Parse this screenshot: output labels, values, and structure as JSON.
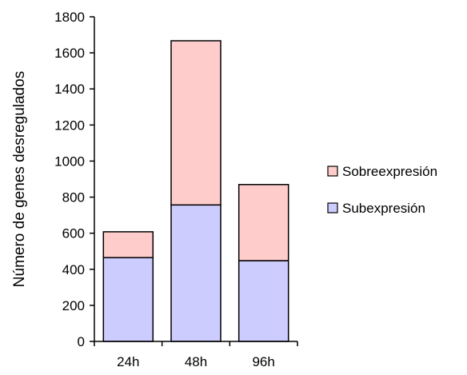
{
  "chart_data": {
    "type": "bar",
    "stacked": true,
    "categories": [
      "24h",
      "48h",
      "96h"
    ],
    "series": [
      {
        "name": "Subexpresión",
        "values": [
          465,
          757,
          448
        ],
        "color": "#ccccff"
      },
      {
        "name": "Sobreexpresión",
        "values": [
          143,
          910,
          422
        ],
        "color": "#ffcccc"
      }
    ],
    "title": "",
    "xlabel": "",
    "ylabel": "Número de genes desregulados",
    "ylim": [
      0,
      1800
    ],
    "yticks": [
      0,
      200,
      400,
      600,
      800,
      1000,
      1200,
      1400,
      1600,
      1800
    ],
    "grid": false,
    "legend_position": "right",
    "legend_order": [
      "Sobreexpresión",
      "Subexpresión"
    ],
    "stroke_color": "#000000"
  }
}
